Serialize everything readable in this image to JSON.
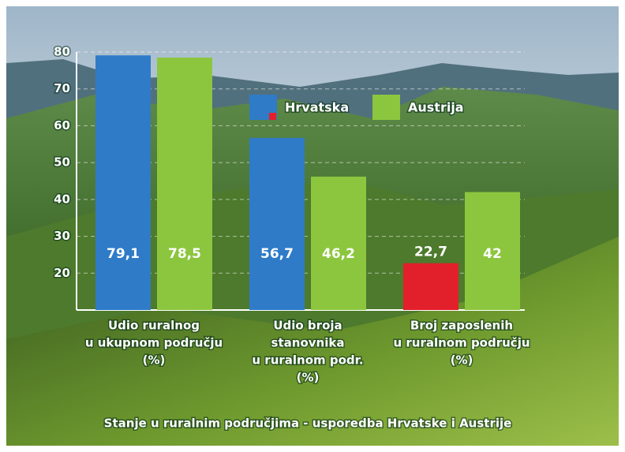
{
  "chart_data": {
    "type": "bar",
    "title": "Stanje u ruralnim područjima - usporedba Hrvatske i Austrije",
    "categories": [
      [
        "Udio ruralnog",
        "u ukupnom području",
        "(%)"
      ],
      [
        "Udio broja",
        "stanovnika",
        "u ruralnom podr.",
        "(%)"
      ],
      [
        "Broj zaposlenih",
        "u ruralnom području",
        "(%)"
      ]
    ],
    "series": [
      {
        "name": "Hrvatska",
        "color": "#2f7bc8",
        "point_colors": [
          "#2f7bc8",
          "#2f7bc8",
          "#e2202b"
        ],
        "values": [
          79.1,
          56.7,
          22.7
        ],
        "value_labels": [
          "79,1",
          "56,7",
          "22,7"
        ]
      },
      {
        "name": "Austrija",
        "color": "#8cc63f",
        "values": [
          78.5,
          46.2,
          42
        ],
        "value_labels": [
          "78,5",
          "46,2",
          "42"
        ]
      }
    ],
    "ylim": [
      10,
      80
    ],
    "yticks": [
      20,
      30,
      40,
      50,
      60,
      70,
      80
    ],
    "grid": true
  }
}
